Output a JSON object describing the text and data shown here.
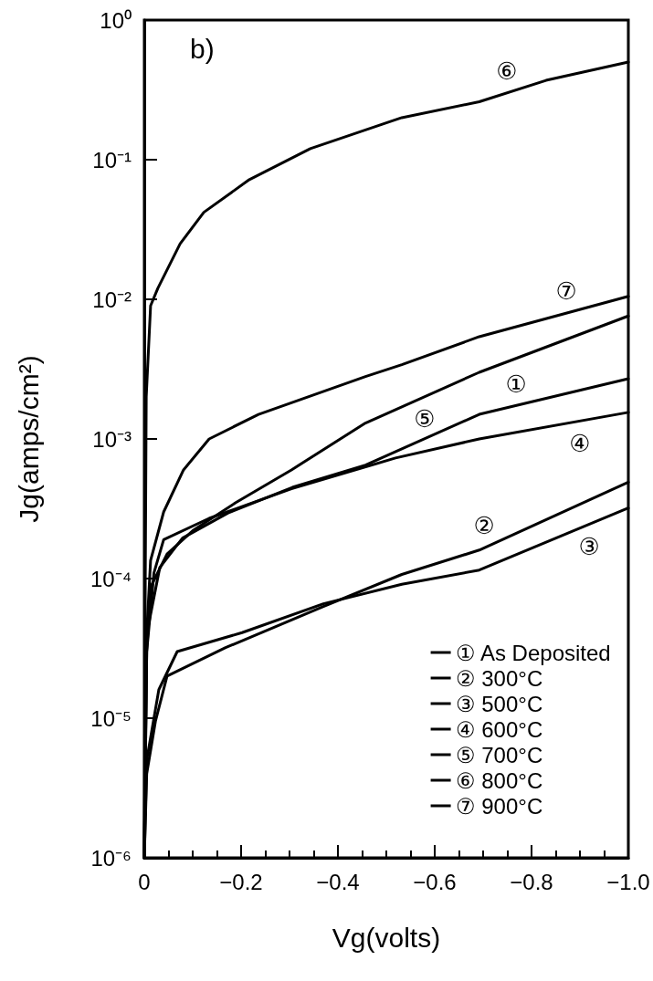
{
  "chart_data": {
    "type": "line",
    "xlabel": "Vg(volts)",
    "ylabel": "Jg(amps/cm²)",
    "log": "y",
    "xlim": [
      0,
      -1.0
    ],
    "xticks": [
      0,
      {
        "value": -0.2,
        "label": "−0.2"
      },
      {
        "value": -0.4,
        "label": "−0.4"
      },
      {
        "value": -0.6,
        "label": "−0.6"
      },
      {
        "value": -0.8,
        "label": "−0.8"
      },
      {
        "value": -1.0,
        "label": "−1.0"
      }
    ],
    "ylim": [
      1e-06,
      1
    ],
    "yticks": [
      {
        "value": 1e-06,
        "label": "10⁻⁶"
      },
      {
        "value": 1e-05,
        "label": "10⁻⁵"
      },
      {
        "value": 0.0001,
        "label": "10⁻⁴"
      },
      {
        "value": 0.001,
        "label": "10⁻³"
      },
      {
        "value": 0.01,
        "label": "10⁻²"
      },
      {
        "value": 0.1,
        "label": "10⁻¹"
      },
      {
        "value": 1,
        "label": "10⁰"
      }
    ],
    "grid": false,
    "legend": "bottom right",
    "marker": "none",
    "line_style": "solid",
    "series": [
      {
        "name": "① As Deposited",
        "color": "#000000",
        "x": [
          0,
          -0.005,
          -0.032,
          -0.079,
          -0.173,
          -0.306,
          -0.457,
          -0.692,
          -1.0
        ],
        "values": [
          1e-06,
          4e-05,
          0.00012,
          0.000195,
          0.000295,
          0.00045,
          0.00065,
          0.0015,
          0.0027
        ]
      },
      {
        "name": "② 300°C",
        "color": "#000000",
        "x": [
          0,
          -0.005,
          -0.023,
          -0.047,
          -0.168,
          -0.37,
          -0.532,
          -0.692,
          -1.0
        ],
        "values": [
          1e-06,
          4e-06,
          9.5e-06,
          2e-05,
          3.2e-05,
          6.3e-05,
          0.000107,
          0.00016,
          0.00049
        ]
      },
      {
        "name": "③ 500°C",
        "color": "#000000",
        "x": [
          0,
          -0.005,
          -0.03,
          -0.068,
          -0.202,
          -0.37,
          -0.532,
          -0.692,
          -1.0
        ],
        "values": [
          1e-06,
          5e-06,
          1.6e-05,
          3e-05,
          4.1e-05,
          6.6e-05,
          9.1e-05,
          0.000115,
          0.00032
        ]
      },
      {
        "name": "④ 600°C",
        "color": "#000000",
        "x": [
          0,
          -0.005,
          -0.02,
          -0.04,
          -0.134,
          -0.304,
          -0.519,
          -0.692,
          -1.0
        ],
        "values": [
          1e-06,
          3e-05,
          0.00011,
          0.00019,
          0.00027,
          0.00044,
          0.00073,
          0.001,
          0.00155
        ]
      },
      {
        "name": "⑤ 700°C",
        "color": "#000000",
        "x": [
          0,
          -0.005,
          -0.013,
          -0.047,
          -0.1,
          -0.189,
          -0.304,
          -0.457,
          -0.692,
          -1.0
        ],
        "values": [
          1e-06,
          3e-05,
          8.7e-05,
          0.00015,
          0.00022,
          0.00035,
          0.0006,
          0.0013,
          0.003,
          0.0076
        ]
      },
      {
        "name": "⑥ 800°C",
        "color": "#000000",
        "x": [
          0,
          -0.002,
          -0.004,
          -0.013,
          -0.028,
          -0.074,
          -0.123,
          -0.217,
          -0.343,
          -0.532,
          -0.692,
          -0.83,
          -1.0
        ],
        "values": [
          1e-06,
          0.0001,
          0.002,
          0.009,
          0.012,
          0.025,
          0.042,
          0.072,
          0.12,
          0.2,
          0.26,
          0.37,
          0.5
        ]
      },
      {
        "name": "⑦ 900°C",
        "color": "#000000",
        "x": [
          0,
          -0.003,
          -0.013,
          -0.04,
          -0.081,
          -0.134,
          -0.236,
          -0.457,
          -0.532,
          -0.692,
          -1.0
        ],
        "values": [
          1e-06,
          3e-05,
          0.000135,
          0.0003,
          0.0006,
          0.001,
          0.0015,
          0.0028,
          0.0034,
          0.0054,
          0.0105
        ]
      }
    ],
    "annotations": [
      "b)",
      {
        "text": "⑥",
        "x": -0.749,
        "y": 0.3
      },
      {
        "text": "⑦",
        "x": -0.872,
        "y": 0.008
      },
      {
        "text": "⑤",
        "x": -0.579,
        "y": 0.002
      },
      {
        "text": "①",
        "x": -0.768,
        "y": 0.00173
      },
      {
        "text": "④",
        "x": -0.9,
        "y": 0.00134
      },
      {
        "text": "②",
        "x": -0.702,
        "y": 0.000166
      },
      {
        "text": "③",
        "x": -0.919,
        "y": 0.000244
      }
    ]
  }
}
